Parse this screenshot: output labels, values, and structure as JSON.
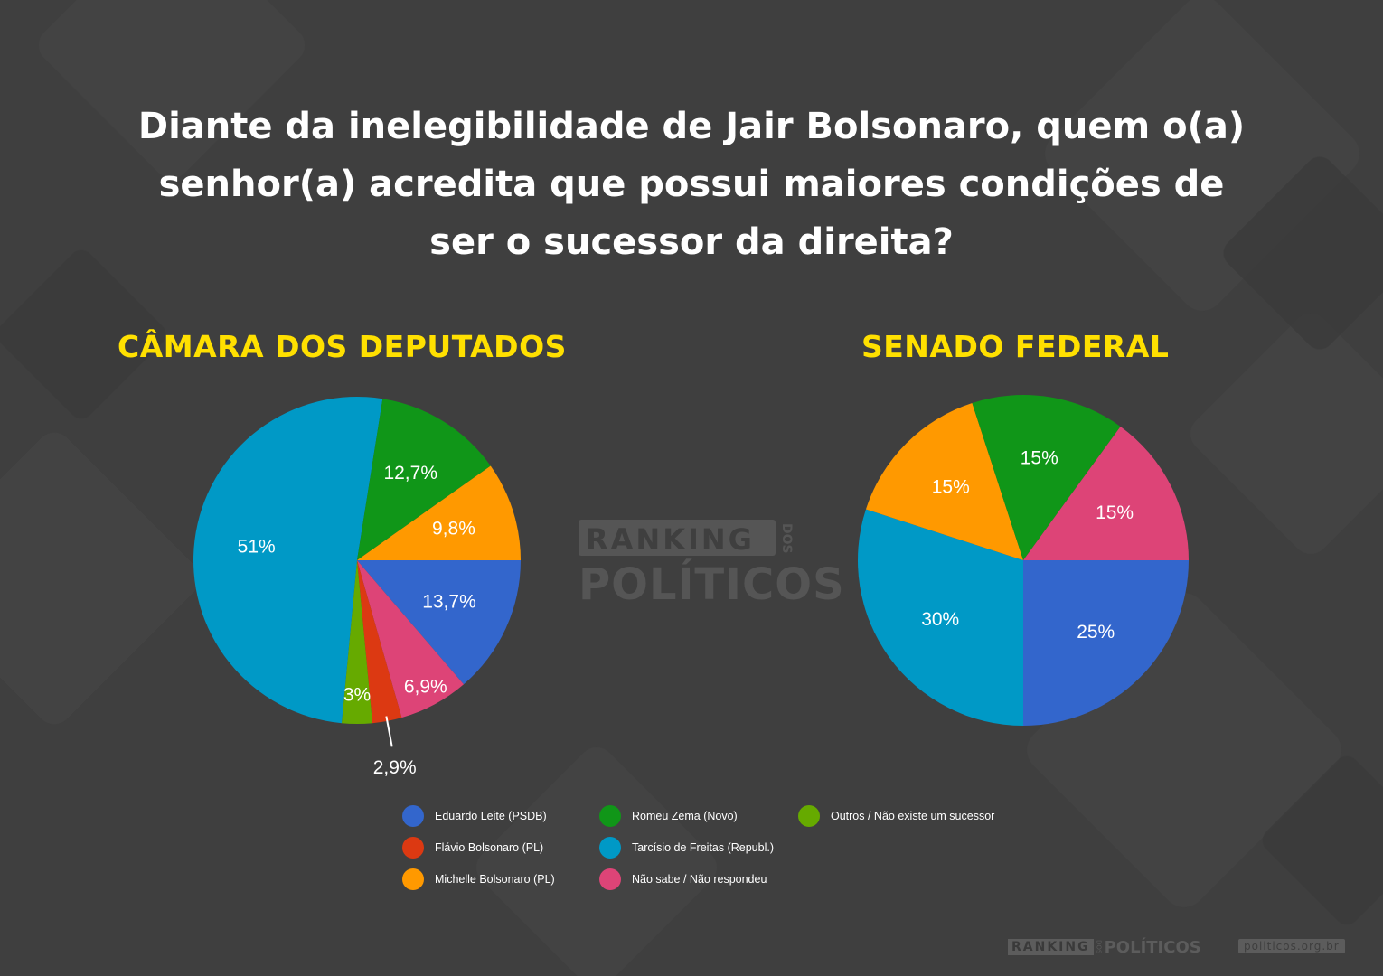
{
  "title_lines": [
    "Diante da inelegibilidade de Jair Bolsonaro, quem o(a)",
    "senhor(a) acredita que possui maiores condições de",
    "ser o sucessor da direita?"
  ],
  "colors": {
    "background": "#3f3f3f",
    "chart_title": "#ffe000",
    "eduardo_leite": "#3366cc",
    "flavio_bolsonaro": "#dc3912",
    "michelle_bolsonaro": "#ff9900",
    "romeu_zema": "#109618",
    "tarcisio_de_freitas": "#0099c6",
    "nao_sabe": "#dd4477",
    "outros": "#66aa00"
  },
  "legend": [
    {
      "label": "Eduardo Leite (PSDB)",
      "color": "#3366cc"
    },
    {
      "label": "Flávio Bolsonaro (PL)",
      "color": "#dc3912"
    },
    {
      "label": "Michelle Bolsonaro (PL)",
      "color": "#ff9900"
    },
    {
      "label": "Romeu Zema (Novo)",
      "color": "#109618"
    },
    {
      "label": "Tarcísio de Freitas (Republ.)",
      "color": "#0099c6"
    },
    {
      "label": "Não sabe / Não respondeu",
      "color": "#dd4477"
    },
    {
      "label": "Outros / Não existe um sucessor",
      "color": "#66aa00"
    }
  ],
  "watermark": {
    "top": "RANKING",
    "dos": "DOS",
    "bottom": "POLÍTICOS"
  },
  "footer": {
    "logo_box": "RANKING",
    "logo_dos": "DOS",
    "logo_text": "POLÍTICOS",
    "url": "politicos.org.br"
  },
  "chart_data": [
    {
      "type": "pie",
      "title": "CÂMARA DOS DEPUTADOS",
      "slices": [
        {
          "name": "Eduardo Leite (PSDB)",
          "value": 13.7,
          "label": "13,7%",
          "color": "#3366cc"
        },
        {
          "name": "Não sabe / Não respondeu",
          "value": 6.9,
          "label": "6,9%",
          "color": "#dd4477"
        },
        {
          "name": "Flávio Bolsonaro (PL)",
          "value": 2.9,
          "label": "2,9%",
          "color": "#dc3912"
        },
        {
          "name": "Outros / Não existe um sucessor",
          "value": 3,
          "label": "3%",
          "color": "#66aa00"
        },
        {
          "name": "Tarcísio de Freitas (Republ.)",
          "value": 51,
          "label": "51%",
          "color": "#0099c6"
        },
        {
          "name": "Romeu Zema (Novo)",
          "value": 12.7,
          "label": "12,7%",
          "color": "#109618"
        },
        {
          "name": "Michelle Bolsonaro (PL)",
          "value": 9.8,
          "label": "9,8%",
          "color": "#ff9900"
        }
      ]
    },
    {
      "type": "pie",
      "title": "SENADO FEDERAL",
      "slices": [
        {
          "name": "Eduardo Leite (PSDB)",
          "value": 25,
          "label": "25%",
          "color": "#3366cc"
        },
        {
          "name": "Tarcísio de Freitas (Republ.)",
          "value": 30,
          "label": "30%",
          "color": "#0099c6"
        },
        {
          "name": "Michelle Bolsonaro (PL)",
          "value": 15,
          "label": "15%",
          "color": "#ff9900"
        },
        {
          "name": "Romeu Zema (Novo)",
          "value": 15,
          "label": "15%",
          "color": "#109618"
        },
        {
          "name": "Não sabe / Não respondeu",
          "value": 15,
          "label": "15%",
          "color": "#dd4477"
        }
      ]
    }
  ]
}
